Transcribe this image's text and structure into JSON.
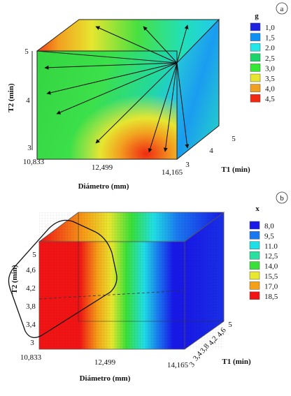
{
  "chart_data": [
    {
      "type": "heatmap",
      "panel_label": "a",
      "title": "",
      "xlabel": "Diámetro (mm)",
      "ylabel": "T2 (min)",
      "zlabel": "T1 (min)",
      "x_ticks": [
        "10,833",
        "12,499",
        "14,165"
      ],
      "y_ticks": [
        "3",
        "4",
        "5"
      ],
      "z_ticks": [
        "3",
        "4",
        "5"
      ],
      "xlim": [
        10.833,
        14.165
      ],
      "ylim": [
        3,
        5
      ],
      "zlim": [
        3,
        5
      ],
      "grid": false,
      "legend": {
        "position": "top-right",
        "title": "g",
        "entries": [
          {
            "label": "1,0",
            "color": "#1e22e0"
          },
          {
            "label": "1,5",
            "color": "#0d90f2"
          },
          {
            "label": "2.0",
            "color": "#22e8e8"
          },
          {
            "label": "2,5",
            "color": "#1ad66a"
          },
          {
            "label": "3,0",
            "color": "#34e834"
          },
          {
            "label": "3,5",
            "color": "#e6e630"
          },
          {
            "label": "4,0",
            "color": "#f2a020"
          },
          {
            "label": "4,5",
            "color": "#f02a12"
          }
        ]
      },
      "annotation": "arrows radiating from the corner (14,165; 5; 5) toward the faces"
    },
    {
      "type": "heatmap",
      "panel_label": "b",
      "title": "",
      "xlabel": "Diámetro (mm)",
      "ylabel": "T2 (min)",
      "zlabel": "T1 (min)",
      "x_ticks": [
        "10,833",
        "12,499",
        "14,165"
      ],
      "y_ticks": [
        "3",
        "3,4",
        "3,8",
        "4,2",
        "4,6",
        "5"
      ],
      "z_ticks": [
        "3",
        "3,4",
        "3,8",
        "4,2",
        "4,6",
        "5"
      ],
      "xlim": [
        10.833,
        14.165
      ],
      "ylim": [
        3,
        5
      ],
      "zlim": [
        3,
        5
      ],
      "grid": true,
      "legend": {
        "position": "top-right",
        "title": "x",
        "entries": [
          {
            "label": "8,0",
            "color": "#1818e8"
          },
          {
            "label": "9,5",
            "color": "#1a78f0"
          },
          {
            "label": "11.0",
            "color": "#20e0e6"
          },
          {
            "label": "12,5",
            "color": "#28e0a0"
          },
          {
            "label": "14,0",
            "color": "#38e038"
          },
          {
            "label": "15,5",
            "color": "#e8e830"
          },
          {
            "label": "17,0",
            "color": "#f6a018"
          },
          {
            "label": "18,5",
            "color": "#f21414"
          }
        ]
      },
      "annotation": "rounded outline highlighting the high-value region near 10,833 mm"
    }
  ]
}
